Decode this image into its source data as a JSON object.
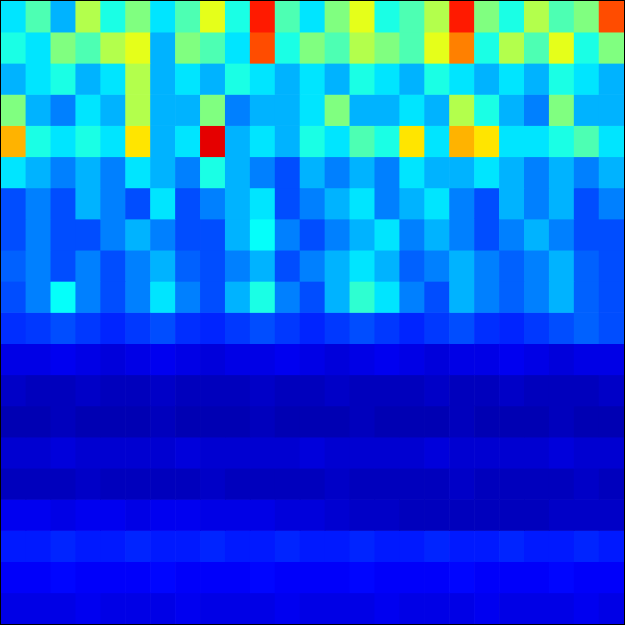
{
  "chart_data": {
    "type": "heatmap",
    "tick_labels": false,
    "grid": false,
    "zlim": [
      0,
      1
    ],
    "cells": [
      [
        0.35,
        0.45,
        0.3,
        0.55,
        0.4,
        0.5,
        0.35,
        0.45,
        0.6,
        0.4,
        0.85,
        0.45,
        0.35,
        0.5,
        0.6,
        0.4,
        0.45,
        0.55,
        0.85,
        0.5,
        0.4,
        0.55,
        0.45,
        0.5,
        0.8
      ],
      [
        0.4,
        0.35,
        0.5,
        0.45,
        0.55,
        0.6,
        0.3,
        0.5,
        0.45,
        0.35,
        0.8,
        0.4,
        0.5,
        0.45,
        0.55,
        0.5,
        0.45,
        0.6,
        0.75,
        0.4,
        0.55,
        0.45,
        0.6,
        0.4,
        0.5
      ],
      [
        0.3,
        0.35,
        0.4,
        0.3,
        0.35,
        0.55,
        0.3,
        0.35,
        0.3,
        0.4,
        0.35,
        0.3,
        0.35,
        0.3,
        0.4,
        0.35,
        0.3,
        0.4,
        0.35,
        0.3,
        0.35,
        0.3,
        0.4,
        0.35,
        0.3
      ],
      [
        0.5,
        0.3,
        0.25,
        0.35,
        0.3,
        0.55,
        0.3,
        0.3,
        0.5,
        0.25,
        0.3,
        0.3,
        0.35,
        0.5,
        0.3,
        0.3,
        0.35,
        0.3,
        0.55,
        0.4,
        0.3,
        0.25,
        0.5,
        0.3,
        0.3
      ],
      [
        0.7,
        0.4,
        0.35,
        0.4,
        0.35,
        0.65,
        0.3,
        0.35,
        0.9,
        0.3,
        0.35,
        0.3,
        0.4,
        0.35,
        0.45,
        0.4,
        0.65,
        0.35,
        0.7,
        0.65,
        0.35,
        0.35,
        0.4,
        0.45,
        0.35
      ],
      [
        0.35,
        0.3,
        0.25,
        0.3,
        0.25,
        0.35,
        0.3,
        0.25,
        0.4,
        0.3,
        0.25,
        0.2,
        0.3,
        0.25,
        0.3,
        0.25,
        0.35,
        0.3,
        0.3,
        0.35,
        0.3,
        0.25,
        0.3,
        0.25,
        0.3
      ],
      [
        0.2,
        0.25,
        0.2,
        0.3,
        0.25,
        0.2,
        0.35,
        0.2,
        0.25,
        0.3,
        0.35,
        0.2,
        0.25,
        0.3,
        0.35,
        0.25,
        0.3,
        0.35,
        0.25,
        0.2,
        0.3,
        0.25,
        0.3,
        0.2,
        0.25
      ],
      [
        0.2,
        0.25,
        0.2,
        0.2,
        0.25,
        0.3,
        0.25,
        0.2,
        0.2,
        0.3,
        0.38,
        0.25,
        0.2,
        0.25,
        0.3,
        0.35,
        0.25,
        0.3,
        0.25,
        0.2,
        0.25,
        0.3,
        0.25,
        0.2,
        0.2
      ],
      [
        0.22,
        0.25,
        0.2,
        0.25,
        0.2,
        0.25,
        0.3,
        0.22,
        0.2,
        0.25,
        0.3,
        0.2,
        0.25,
        0.3,
        0.35,
        0.3,
        0.22,
        0.25,
        0.3,
        0.25,
        0.22,
        0.25,
        0.3,
        0.22,
        0.2
      ],
      [
        0.2,
        0.25,
        0.38,
        0.25,
        0.2,
        0.25,
        0.35,
        0.25,
        0.2,
        0.3,
        0.4,
        0.25,
        0.2,
        0.3,
        0.42,
        0.35,
        0.25,
        0.2,
        0.3,
        0.25,
        0.22,
        0.25,
        0.3,
        0.22,
        0.2
      ],
      [
        0.17,
        0.18,
        0.2,
        0.18,
        0.16,
        0.18,
        0.2,
        0.17,
        0.16,
        0.18,
        0.2,
        0.18,
        0.16,
        0.18,
        0.2,
        0.18,
        0.16,
        0.18,
        0.2,
        0.17,
        0.16,
        0.18,
        0.2,
        0.22,
        0.2
      ],
      [
        0.1,
        0.1,
        0.11,
        0.1,
        0.09,
        0.1,
        0.11,
        0.1,
        0.09,
        0.1,
        0.1,
        0.11,
        0.1,
        0.09,
        0.1,
        0.11,
        0.1,
        0.09,
        0.1,
        0.1,
        0.11,
        0.1,
        0.09,
        0.1,
        0.1
      ],
      [
        0.07,
        0.06,
        0.06,
        0.07,
        0.06,
        0.06,
        0.07,
        0.06,
        0.06,
        0.06,
        0.07,
        0.06,
        0.06,
        0.07,
        0.06,
        0.06,
        0.06,
        0.07,
        0.06,
        0.06,
        0.07,
        0.06,
        0.06,
        0.06,
        0.07
      ],
      [
        0.05,
        0.05,
        0.06,
        0.05,
        0.05,
        0.05,
        0.06,
        0.05,
        0.05,
        0.05,
        0.06,
        0.05,
        0.05,
        0.05,
        0.06,
        0.05,
        0.05,
        0.05,
        0.06,
        0.05,
        0.05,
        0.05,
        0.06,
        0.05,
        0.05
      ],
      [
        0.08,
        0.08,
        0.09,
        0.08,
        0.08,
        0.08,
        0.08,
        0.09,
        0.08,
        0.08,
        0.08,
        0.08,
        0.09,
        0.08,
        0.08,
        0.08,
        0.08,
        0.09,
        0.08,
        0.08,
        0.08,
        0.08,
        0.09,
        0.08,
        0.08
      ],
      [
        0.06,
        0.06,
        0.06,
        0.07,
        0.06,
        0.06,
        0.06,
        0.06,
        0.07,
        0.06,
        0.06,
        0.06,
        0.06,
        0.07,
        0.06,
        0.06,
        0.06,
        0.06,
        0.07,
        0.06,
        0.06,
        0.06,
        0.06,
        0.07,
        0.06
      ],
      [
        0.11,
        0.11,
        0.1,
        0.11,
        0.11,
        0.1,
        0.11,
        0.11,
        0.1,
        0.1,
        0.1,
        0.09,
        0.09,
        0.08,
        0.07,
        0.07,
        0.06,
        0.06,
        0.06,
        0.06,
        0.06,
        0.06,
        0.07,
        0.07,
        0.07
      ],
      [
        0.15,
        0.15,
        0.16,
        0.15,
        0.15,
        0.16,
        0.15,
        0.15,
        0.16,
        0.15,
        0.15,
        0.16,
        0.15,
        0.15,
        0.16,
        0.15,
        0.15,
        0.16,
        0.15,
        0.15,
        0.16,
        0.15,
        0.15,
        0.16,
        0.15
      ],
      [
        0.12,
        0.12,
        0.13,
        0.12,
        0.12,
        0.12,
        0.13,
        0.12,
        0.12,
        0.12,
        0.13,
        0.12,
        0.12,
        0.12,
        0.13,
        0.12,
        0.12,
        0.12,
        0.13,
        0.12,
        0.12,
        0.12,
        0.13,
        0.12,
        0.12
      ],
      [
        0.1,
        0.1,
        0.1,
        0.11,
        0.1,
        0.1,
        0.1,
        0.11,
        0.1,
        0.1,
        0.1,
        0.11,
        0.1,
        0.1,
        0.1,
        0.11,
        0.1,
        0.1,
        0.1,
        0.11,
        0.1,
        0.1,
        0.1,
        0.11,
        0.1
      ]
    ]
  }
}
